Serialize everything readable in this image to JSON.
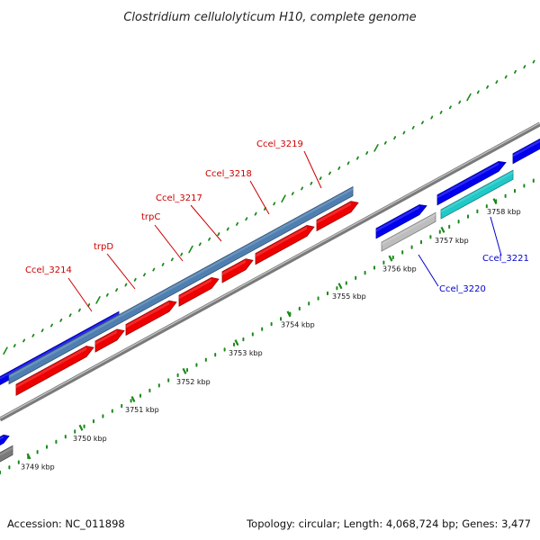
{
  "title": "Clostridium cellulolyticum H10, complete genome",
  "footer": {
    "accession": "Accession: NC_011898",
    "summary": "Topology: circular; Length: 4,068,724 bp; Genes: 3,477"
  },
  "colors": {
    "backbone": "#7a7a7a",
    "forward_cds": "#0000ee",
    "reverse_cds": "#ee0000",
    "operon_region": "#4f7fb0",
    "pseudo_grey": "#bdbdbd",
    "rna_cyan": "#20c8c8",
    "tick_green": "#1a8a1a",
    "label_red": "#cc0000",
    "label_blue": "#0000cc"
  },
  "position_axis": {
    "unit": "kbp",
    "tick_labels": [
      "3749 kbp",
      "3750 kbp",
      "3751 kbp",
      "3752 kbp",
      "3753 kbp",
      "3754 kbp",
      "3755 kbp",
      "3756 kbp",
      "3757 kbp",
      "3758 kbp"
    ]
  },
  "gene_labels": [
    {
      "name": "Ccel_3214",
      "strand": "reverse"
    },
    {
      "name": "trpD",
      "strand": "reverse"
    },
    {
      "name": "trpC",
      "strand": "reverse"
    },
    {
      "name": "Ccel_3217",
      "strand": "reverse"
    },
    {
      "name": "Ccel_3218",
      "strand": "reverse"
    },
    {
      "name": "Ccel_3219",
      "strand": "reverse"
    },
    {
      "name": "Ccel_3220",
      "strand": "forward"
    },
    {
      "name": "Ccel_3221",
      "strand": "forward"
    }
  ]
}
